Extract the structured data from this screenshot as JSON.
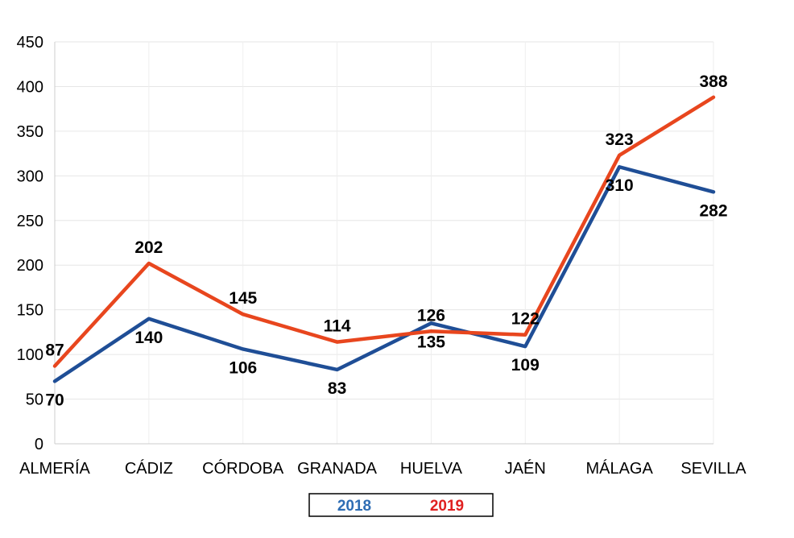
{
  "chart_data": {
    "type": "line",
    "title": "",
    "xlabel": "",
    "ylabel": "",
    "categories": [
      "ALMERÍA",
      "CÁDIZ",
      "CÓRDOBA",
      "GRANADA",
      "HUELVA",
      "JAÉN",
      "MÁLAGA",
      "SEVILLA"
    ],
    "ylim": [
      0,
      450
    ],
    "yticks": [
      0,
      50,
      100,
      150,
      200,
      250,
      300,
      350,
      400,
      450
    ],
    "grid": "horizontal",
    "legend_position": "bottom",
    "series": [
      {
        "name": "2018",
        "color": "#1f4e96",
        "values": [
          70,
          140,
          106,
          83,
          135,
          109,
          310,
          282
        ]
      },
      {
        "name": "2019",
        "color": "#e8461e",
        "values": [
          87,
          202,
          145,
          114,
          126,
          122,
          323,
          388
        ]
      }
    ]
  },
  "legend": {
    "label_2018_color": "#2e6db4",
    "label_2019_color": "#e02020"
  }
}
